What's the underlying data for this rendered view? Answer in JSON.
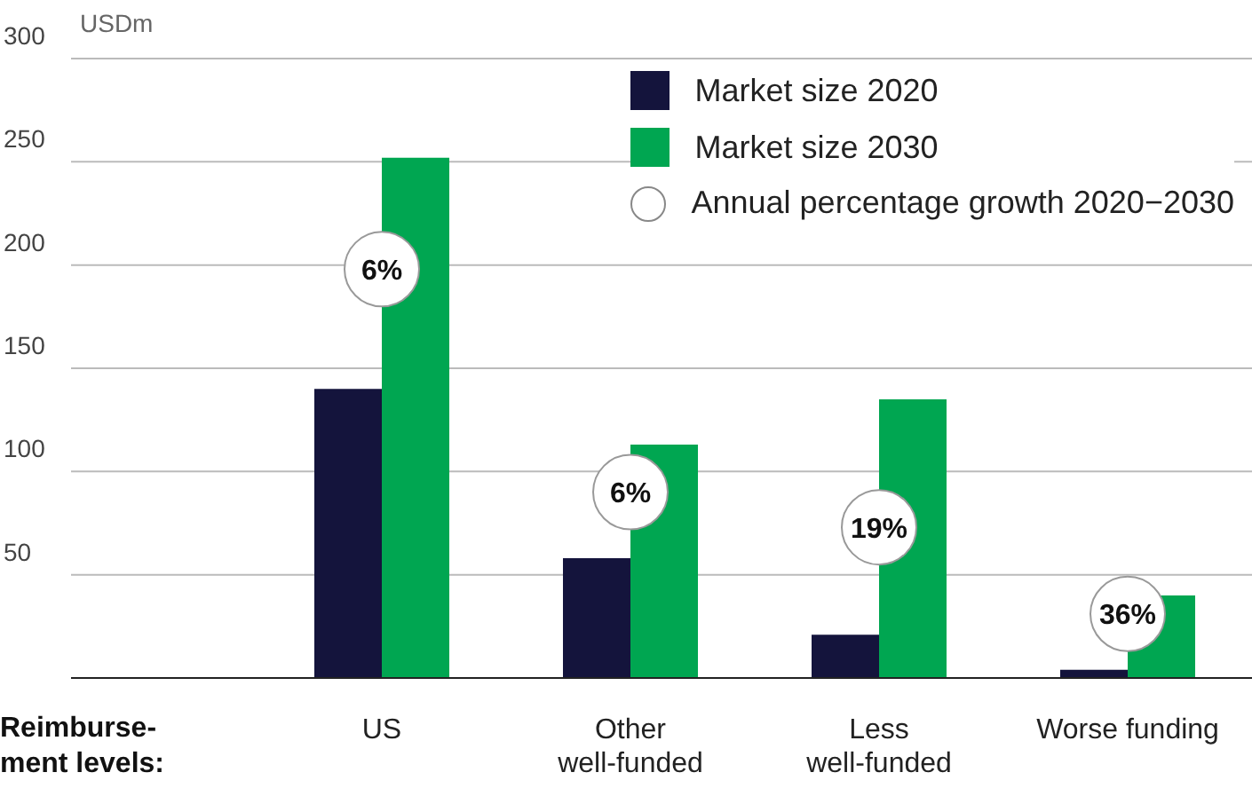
{
  "chart_data": {
    "type": "bar",
    "ylabel": "USDm",
    "xlabel": "Reimburse-ment levels:",
    "categories": [
      "US",
      "Other well-funded",
      "Less well-funded",
      "Worse funding"
    ],
    "series": [
      {
        "name": "Market size 2020",
        "color": "#14143c",
        "values": [
          140,
          58,
          21,
          4
        ]
      },
      {
        "name": "Market size 2030",
        "color": "#00a651",
        "values": [
          252,
          113,
          135,
          40
        ]
      }
    ],
    "annotations": [
      "Annual percentage growth 2020−2030",
      {
        "text": "6%",
        "x": "US",
        "y": 198
      },
      {
        "text": "6%",
        "x": "Other well-funded",
        "y": 90
      },
      {
        "text": "19%",
        "x": "Less well-funded",
        "y": 73
      },
      {
        "text": "36%",
        "x": "Worse funding",
        "y": 31
      }
    ],
    "ylim": [
      0,
      300
    ],
    "yticks": [
      {
        "value": 0,
        "label": null
      },
      50,
      100,
      150,
      200,
      250,
      300
    ],
    "grid": "y",
    "legend": "top right"
  }
}
